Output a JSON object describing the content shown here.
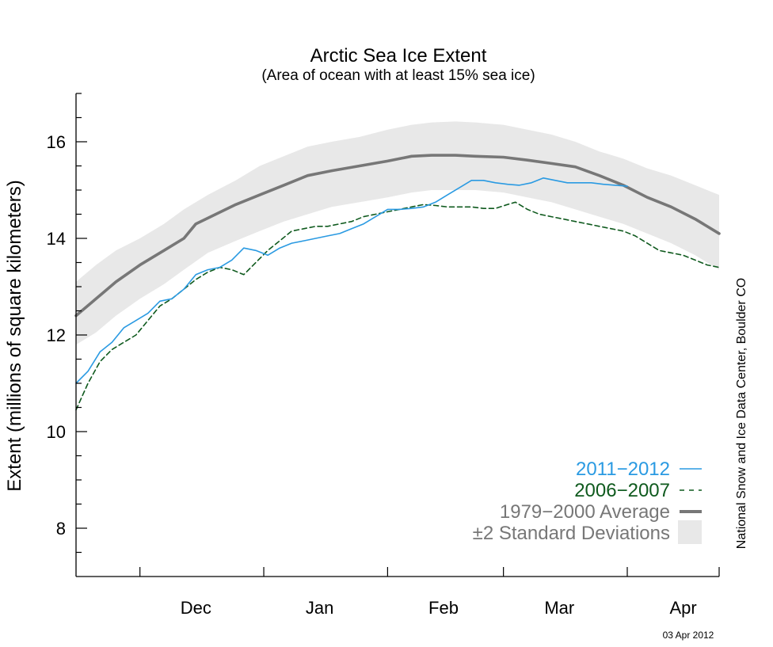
{
  "chart_data": {
    "type": "line",
    "title": "Arctic Sea Ice Extent",
    "subtitle": "(Area of ocean with at least 15% sea ice)",
    "ylabel": "Extent (millions of square kilometers)",
    "xlabel": "",
    "ylim": [
      7,
      17
    ],
    "yticks": [
      8,
      10,
      12,
      14,
      16
    ],
    "month_labels": [
      "Dec",
      "Jan",
      "Feb",
      "Mar",
      "Apr"
    ],
    "credit": "National Snow and Ice Data Center, Boulder CO",
    "date_stamp": "03 Apr 2012",
    "legend_position": "bottom-right",
    "series": [
      {
        "name": "2011−2012",
        "style": "solid",
        "color": "#2a9ae2",
        "points": [
          [
            "11-15",
            11.0
          ],
          [
            "11-18",
            11.25
          ],
          [
            "11-21",
            11.65
          ],
          [
            "11-24",
            11.85
          ],
          [
            "11-27",
            12.15
          ],
          [
            "11-30",
            12.3
          ],
          [
            "12-03",
            12.45
          ],
          [
            "12-06",
            12.7
          ],
          [
            "12-09",
            12.75
          ],
          [
            "12-12",
            12.95
          ],
          [
            "12-15",
            13.25
          ],
          [
            "12-18",
            13.35
          ],
          [
            "12-21",
            13.4
          ],
          [
            "12-24",
            13.55
          ],
          [
            "12-27",
            13.8
          ],
          [
            "12-30",
            13.75
          ],
          [
            "01-02",
            13.65
          ],
          [
            "01-05",
            13.8
          ],
          [
            "01-08",
            13.9
          ],
          [
            "01-11",
            13.95
          ],
          [
            "01-14",
            14.0
          ],
          [
            "01-17",
            14.05
          ],
          [
            "01-20",
            14.1
          ],
          [
            "01-23",
            14.2
          ],
          [
            "01-26",
            14.3
          ],
          [
            "01-29",
            14.45
          ],
          [
            "02-01",
            14.6
          ],
          [
            "02-04",
            14.6
          ],
          [
            "02-07",
            14.62
          ],
          [
            "02-10",
            14.65
          ],
          [
            "02-13",
            14.75
          ],
          [
            "02-16",
            14.9
          ],
          [
            "02-19",
            15.05
          ],
          [
            "02-22",
            15.2
          ],
          [
            "02-25",
            15.2
          ],
          [
            "02-28",
            15.15
          ],
          [
            "03-02",
            15.12
          ],
          [
            "03-05",
            15.1
          ],
          [
            "03-08",
            15.15
          ],
          [
            "03-11",
            15.25
          ],
          [
            "03-14",
            15.2
          ],
          [
            "03-17",
            15.15
          ],
          [
            "03-20",
            15.15
          ],
          [
            "03-23",
            15.15
          ],
          [
            "03-26",
            15.12
          ],
          [
            "03-29",
            15.1
          ],
          [
            "04-01",
            15.08
          ]
        ]
      },
      {
        "name": "2006−2007",
        "style": "dashed",
        "color": "#0f5a1e",
        "points": [
          [
            "11-15",
            10.45
          ],
          [
            "11-18",
            11.0
          ],
          [
            "11-21",
            11.45
          ],
          [
            "11-24",
            11.7
          ],
          [
            "11-27",
            11.85
          ],
          [
            "11-30",
            12.0
          ],
          [
            "12-03",
            12.3
          ],
          [
            "12-06",
            12.6
          ],
          [
            "12-09",
            12.75
          ],
          [
            "12-12",
            12.95
          ],
          [
            "12-15",
            13.15
          ],
          [
            "12-18",
            13.3
          ],
          [
            "12-21",
            13.4
          ],
          [
            "12-24",
            13.35
          ],
          [
            "12-27",
            13.25
          ],
          [
            "12-30",
            13.5
          ],
          [
            "01-02",
            13.75
          ],
          [
            "01-05",
            13.95
          ],
          [
            "01-08",
            14.15
          ],
          [
            "01-11",
            14.2
          ],
          [
            "01-14",
            14.25
          ],
          [
            "01-17",
            14.25
          ],
          [
            "01-20",
            14.3
          ],
          [
            "01-23",
            14.35
          ],
          [
            "01-26",
            14.45
          ],
          [
            "01-29",
            14.5
          ],
          [
            "02-01",
            14.55
          ],
          [
            "02-04",
            14.6
          ],
          [
            "02-07",
            14.65
          ],
          [
            "02-10",
            14.7
          ],
          [
            "02-13",
            14.68
          ],
          [
            "02-16",
            14.65
          ],
          [
            "02-19",
            14.65
          ],
          [
            "02-22",
            14.65
          ],
          [
            "02-25",
            14.62
          ],
          [
            "02-28",
            14.62
          ],
          [
            "03-02",
            14.7
          ],
          [
            "03-04",
            14.75
          ],
          [
            "03-07",
            14.6
          ],
          [
            "03-10",
            14.5
          ],
          [
            "03-13",
            14.45
          ],
          [
            "03-16",
            14.4
          ],
          [
            "03-19",
            14.35
          ],
          [
            "03-22",
            14.3
          ],
          [
            "03-25",
            14.25
          ],
          [
            "03-28",
            14.2
          ],
          [
            "03-31",
            14.15
          ],
          [
            "04-03",
            14.05
          ],
          [
            "04-06",
            13.9
          ],
          [
            "04-09",
            13.75
          ],
          [
            "04-12",
            13.7
          ],
          [
            "04-15",
            13.65
          ],
          [
            "04-18",
            13.55
          ],
          [
            "04-21",
            13.45
          ],
          [
            "04-24",
            13.4
          ]
        ]
      },
      {
        "name": "1979−2000 Average",
        "style": "solid-thick",
        "color": "#777777",
        "points": [
          [
            "11-15",
            12.4
          ],
          [
            "11-20",
            12.75
          ],
          [
            "11-25",
            13.1
          ],
          [
            "12-01",
            13.45
          ],
          [
            "12-07",
            13.75
          ],
          [
            "12-12",
            14.0
          ],
          [
            "12-15",
            14.3
          ],
          [
            "12-20",
            14.5
          ],
          [
            "12-25",
            14.7
          ],
          [
            "12-31",
            14.9
          ],
          [
            "01-06",
            15.1
          ],
          [
            "01-12",
            15.3
          ],
          [
            "01-18",
            15.4
          ],
          [
            "01-25",
            15.5
          ],
          [
            "02-01",
            15.6
          ],
          [
            "02-07",
            15.7
          ],
          [
            "02-12",
            15.72
          ],
          [
            "02-18",
            15.72
          ],
          [
            "02-23",
            15.7
          ],
          [
            "03-01",
            15.68
          ],
          [
            "03-07",
            15.62
          ],
          [
            "03-13",
            15.55
          ],
          [
            "03-19",
            15.48
          ],
          [
            "03-25",
            15.3
          ],
          [
            "03-31",
            15.1
          ],
          [
            "04-06",
            14.85
          ],
          [
            "04-12",
            14.65
          ],
          [
            "04-18",
            14.4
          ],
          [
            "04-24",
            14.1
          ]
        ]
      }
    ],
    "band": {
      "name": "±2 Standard Deviations",
      "color": "#e8e8e8",
      "upper": [
        [
          "11-15",
          13.1
        ],
        [
          "11-20",
          13.45
        ],
        [
          "11-25",
          13.75
        ],
        [
          "12-01",
          14.0
        ],
        [
          "12-07",
          14.3
        ],
        [
          "12-12",
          14.6
        ],
        [
          "12-18",
          14.9
        ],
        [
          "12-25",
          15.2
        ],
        [
          "12-31",
          15.5
        ],
        [
          "01-06",
          15.7
        ],
        [
          "01-12",
          15.9
        ],
        [
          "01-18",
          16.0
        ],
        [
          "01-25",
          16.1
        ],
        [
          "02-01",
          16.25
        ],
        [
          "02-07",
          16.35
        ],
        [
          "02-12",
          16.4
        ],
        [
          "02-18",
          16.42
        ],
        [
          "02-23",
          16.4
        ],
        [
          "03-01",
          16.35
        ],
        [
          "03-07",
          16.25
        ],
        [
          "03-13",
          16.15
        ],
        [
          "03-19",
          16.0
        ],
        [
          "03-25",
          15.8
        ],
        [
          "03-31",
          15.65
        ],
        [
          "04-06",
          15.45
        ],
        [
          "04-12",
          15.3
        ],
        [
          "04-18",
          15.1
        ],
        [
          "04-24",
          14.9
        ]
      ],
      "lower": [
        [
          "11-15",
          11.8
        ],
        [
          "11-20",
          12.05
        ],
        [
          "11-25",
          12.4
        ],
        [
          "12-01",
          12.75
        ],
        [
          "12-07",
          13.05
        ],
        [
          "12-12",
          13.35
        ],
        [
          "12-18",
          13.7
        ],
        [
          "12-25",
          13.95
        ],
        [
          "12-31",
          14.15
        ],
        [
          "01-06",
          14.35
        ],
        [
          "01-12",
          14.5
        ],
        [
          "01-18",
          14.65
        ],
        [
          "01-25",
          14.75
        ],
        [
          "02-01",
          14.85
        ],
        [
          "02-07",
          14.95
        ],
        [
          "02-12",
          15.0
        ],
        [
          "02-18",
          15.0
        ],
        [
          "02-23",
          15.0
        ],
        [
          "03-01",
          14.95
        ],
        [
          "03-07",
          14.85
        ],
        [
          "03-13",
          14.75
        ],
        [
          "03-19",
          14.6
        ],
        [
          "03-25",
          14.45
        ],
        [
          "03-31",
          14.3
        ],
        [
          "04-06",
          14.1
        ],
        [
          "04-12",
          13.9
        ],
        [
          "04-18",
          13.65
        ],
        [
          "04-24",
          13.35
        ]
      ]
    }
  }
}
